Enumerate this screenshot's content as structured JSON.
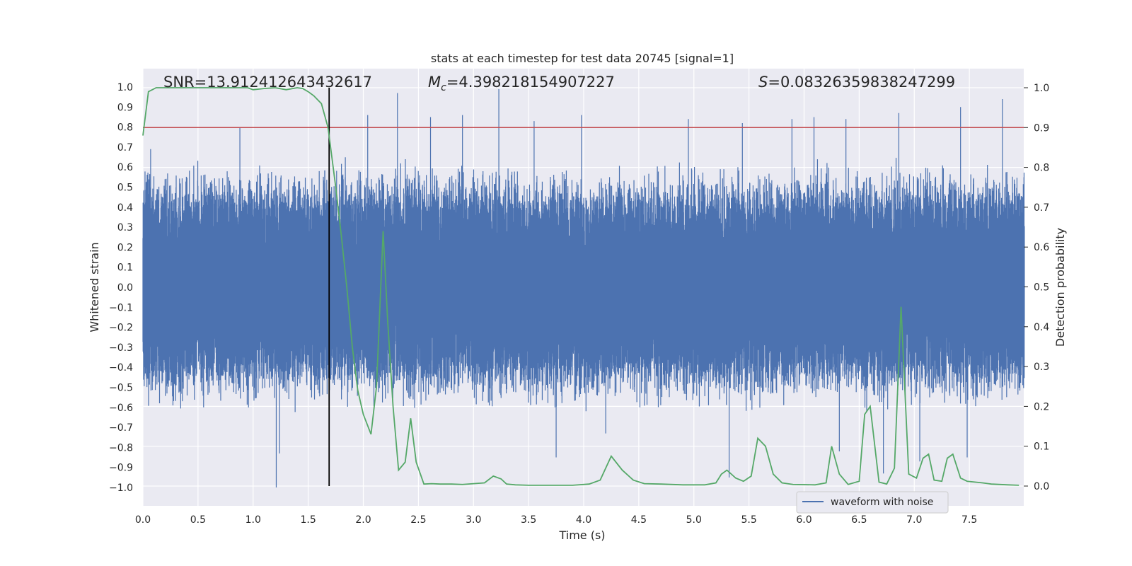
{
  "chart_data": {
    "type": "line",
    "title": "stats at each timestep for test data 20745 [signal=1]",
    "xlabel": "Time (s)",
    "ylabel_left": "Whitened strain",
    "ylabel_right": "Detection probability",
    "xlim": [
      0.0,
      8.0
    ],
    "ylim_left": [
      -1.1,
      1.07
    ],
    "ylim_right": [
      -0.05,
      1.04
    ],
    "xticks": [
      0.0,
      0.5,
      1.0,
      1.5,
      2.0,
      2.5,
      3.0,
      3.5,
      4.0,
      4.5,
      5.0,
      5.5,
      6.0,
      6.5,
      7.0,
      7.5
    ],
    "xtick_labels": [
      "0.0",
      "0.5",
      "1.0",
      "1.5",
      "2.0",
      "2.5",
      "3.0",
      "3.5",
      "4.0",
      "4.5",
      "5.0",
      "5.5",
      "6.0",
      "6.5",
      "7.0",
      "7.5"
    ],
    "yticks_left": [
      1.0,
      0.9,
      0.8,
      0.7,
      0.6,
      0.5,
      0.4,
      0.3,
      0.2,
      0.1,
      0.0,
      -0.1,
      -0.2,
      -0.3,
      -0.4,
      -0.5,
      -0.6,
      -0.7,
      -0.8,
      -0.9,
      -1.0
    ],
    "ytick_labels_left": [
      "1.0",
      "0.9",
      "0.8",
      "0.7",
      "0.6",
      "0.5",
      "0.4",
      "0.3",
      "0.2",
      "0.1",
      "0.0",
      "−0.1",
      "−0.2",
      "−0.3",
      "−0.4",
      "−0.5",
      "−0.6",
      "−0.7",
      "−0.8",
      "−0.9",
      "−1.0"
    ],
    "yticks_right": [
      1.0,
      0.9,
      0.8,
      0.7,
      0.6,
      0.5,
      0.4,
      0.3,
      0.2,
      0.1,
      0.0
    ],
    "ytick_labels_right": [
      "1.0",
      "0.9",
      "0.8",
      "0.7",
      "0.6",
      "0.5",
      "0.4",
      "0.3",
      "0.2",
      "0.1",
      "0.0"
    ],
    "grid": true,
    "annotations": {
      "snr": "SNR=13.912412643432617",
      "mc_symbol": "M",
      "mc_sub": "c",
      "mc_value": "=4.398218154907227",
      "s_symbol": "S",
      "s_value": "=0.08326359838247299"
    },
    "threshold_right": 0.9,
    "event_time": 1.69,
    "legend": {
      "label": "waveform with noise",
      "placement": "lower-right"
    },
    "waveform": {
      "name": "waveform with noise",
      "sample_rate_hz": 2048,
      "envelope_pos": 0.52,
      "envelope_neg": -0.5,
      "peak_spikes": [
        [
          0.07,
          0.69
        ],
        [
          0.88,
          0.8
        ],
        [
          1.21,
          -1.0
        ],
        [
          1.24,
          -0.83
        ],
        [
          1.6,
          0.58
        ],
        [
          1.69,
          0.42
        ],
        [
          1.82,
          0.15
        ],
        [
          2.04,
          0.86
        ],
        [
          2.31,
          0.97
        ],
        [
          2.61,
          0.85
        ],
        [
          2.9,
          0.86
        ],
        [
          3.23,
          0.99
        ],
        [
          3.55,
          0.83
        ],
        [
          3.75,
          -0.85
        ],
        [
          3.98,
          0.86
        ],
        [
          4.2,
          -0.73
        ],
        [
          4.95,
          0.84
        ],
        [
          5.32,
          -0.95
        ],
        [
          5.44,
          0.82
        ],
        [
          5.89,
          0.84
        ],
        [
          6.09,
          0.85
        ],
        [
          6.32,
          -0.82
        ],
        [
          6.38,
          0.84
        ],
        [
          6.72,
          -0.93
        ],
        [
          6.86,
          0.87
        ],
        [
          7.05,
          -0.87
        ],
        [
          7.42,
          0.9
        ],
        [
          7.48,
          -0.85
        ],
        [
          7.8,
          0.94
        ]
      ]
    },
    "series": [
      {
        "name": "detection probability",
        "axis": "right",
        "x": [
          0.0,
          0.05,
          0.12,
          0.25,
          0.4,
          0.6,
          0.8,
          0.95,
          1.0,
          1.1,
          1.2,
          1.3,
          1.4,
          1.45,
          1.5,
          1.55,
          1.62,
          1.68,
          1.75,
          1.8,
          1.85,
          1.9,
          1.95,
          2.0,
          2.07,
          2.12,
          2.18,
          2.22,
          2.27,
          2.32,
          2.38,
          2.43,
          2.48,
          2.55,
          2.62,
          2.7,
          2.8,
          2.9,
          3.0,
          3.1,
          3.18,
          3.25,
          3.3,
          3.38,
          3.5,
          3.7,
          3.9,
          4.05,
          4.15,
          4.25,
          4.35,
          4.45,
          4.55,
          4.7,
          4.9,
          5.1,
          5.2,
          5.25,
          5.3,
          5.38,
          5.45,
          5.52,
          5.58,
          5.65,
          5.72,
          5.8,
          5.9,
          6.1,
          6.2,
          6.25,
          6.32,
          6.4,
          6.5,
          6.55,
          6.6,
          6.68,
          6.75,
          6.82,
          6.88,
          6.95,
          7.02,
          7.08,
          7.13,
          7.18,
          7.25,
          7.3,
          7.35,
          7.42,
          7.48,
          7.55,
          7.62,
          7.7,
          7.85,
          7.95
        ],
        "y": [
          0.88,
          0.99,
          1.0,
          1.0,
          1.0,
          1.0,
          1.0,
          1.0,
          0.995,
          0.998,
          1.0,
          0.995,
          1.0,
          0.998,
          0.99,
          0.98,
          0.96,
          0.9,
          0.75,
          0.63,
          0.5,
          0.35,
          0.24,
          0.18,
          0.13,
          0.25,
          0.64,
          0.42,
          0.2,
          0.04,
          0.06,
          0.17,
          0.06,
          0.005,
          0.006,
          0.005,
          0.005,
          0.004,
          0.006,
          0.008,
          0.025,
          0.018,
          0.005,
          0.003,
          0.002,
          0.002,
          0.002,
          0.005,
          0.015,
          0.075,
          0.04,
          0.015,
          0.006,
          0.005,
          0.003,
          0.003,
          0.008,
          0.03,
          0.04,
          0.02,
          0.012,
          0.025,
          0.12,
          0.1,
          0.03,
          0.008,
          0.004,
          0.003,
          0.008,
          0.1,
          0.03,
          0.004,
          0.012,
          0.18,
          0.2,
          0.01,
          0.005,
          0.045,
          0.45,
          0.03,
          0.02,
          0.07,
          0.08,
          0.015,
          0.012,
          0.07,
          0.08,
          0.02,
          0.012,
          0.01,
          0.008,
          0.005,
          0.003,
          0.002
        ]
      }
    ]
  }
}
